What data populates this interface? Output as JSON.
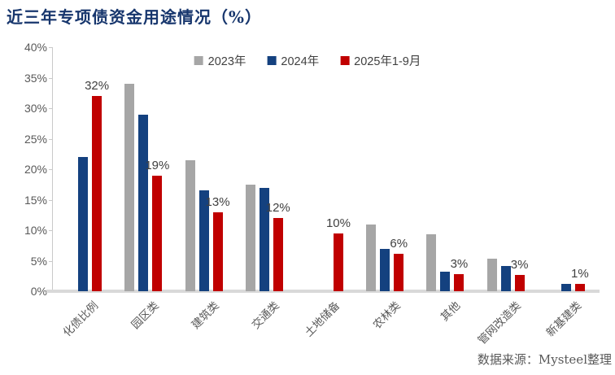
{
  "title": "近三年专项债资金用途情况（%）",
  "source_note": "数据来源：Mysteel整理",
  "colors": {
    "title": "#17366d",
    "series_2023": "#A6A6A6",
    "series_2024": "#14417F",
    "series_2025": "#C00000",
    "axis_line": "#c9c9c9",
    "baseline": "#d9d9d9",
    "tick_text": "#595959",
    "label_text": "#404040"
  },
  "chart_data": {
    "type": "bar",
    "title": "近三年专项债资金用途情况（%）",
    "xlabel": "",
    "ylabel": "",
    "ylim": [
      0,
      40
    ],
    "y_tick_step": 5,
    "y_ticks": [
      "40%",
      "35%",
      "30%",
      "25%",
      "20%",
      "15%",
      "10%",
      "5%",
      "0%"
    ],
    "grid": false,
    "legend_position": "top",
    "categories": [
      "化债比例",
      "园区类",
      "建筑类",
      "交通类",
      "土地储备",
      "农林类",
      "其他",
      "管网改造类",
      "新基建类"
    ],
    "series": [
      {
        "name": "2023年",
        "color": "#A6A6A6",
        "values": [
          null,
          34,
          21.5,
          17.5,
          null,
          11,
          9.3,
          5.3,
          null
        ]
      },
      {
        "name": "2024年",
        "color": "#14417F",
        "values": [
          22,
          29,
          16.5,
          17,
          null,
          7,
          3.2,
          4.1,
          1.2
        ]
      },
      {
        "name": "2025年1-9月",
        "color": "#C00000",
        "values": [
          32,
          19,
          13,
          12,
          9.5,
          6.2,
          2.8,
          2.7,
          1.2
        ],
        "data_labels": [
          "32%",
          "19%",
          "13%",
          "12%",
          "10%",
          "6%",
          "3%",
          "3%",
          "1%"
        ]
      }
    ]
  }
}
